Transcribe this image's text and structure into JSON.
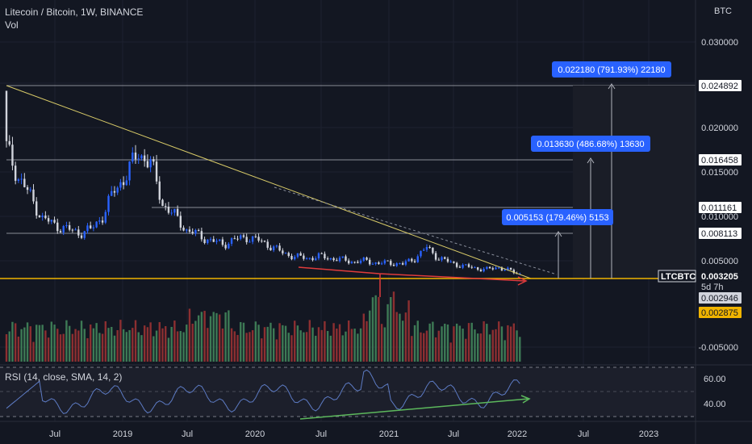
{
  "header": {
    "title": "Litecoin / Bitcoin, 1W, BINANCE",
    "volume_label": "Vol",
    "currency": "BTC"
  },
  "price_axis": {
    "ticks": [
      "0.030000",
      "0.020000",
      "0.015000",
      "0.010000",
      "0.005000",
      "-0.005000"
    ],
    "tags": [
      {
        "label": "0.024892",
        "style": "white"
      },
      {
        "label": "0.016458",
        "style": "white"
      },
      {
        "label": "0.011161",
        "style": "white"
      },
      {
        "label": "0.008113",
        "style": "white"
      },
      {
        "label": "0.003205",
        "style": "dark"
      },
      {
        "label": "5d 7h",
        "style": "dark-sub"
      },
      {
        "label": "0.002946",
        "style": "gray"
      },
      {
        "label": "0.002875",
        "style": "yellow"
      }
    ],
    "symbol_tag": "LTCBTC"
  },
  "time_axis": [
    "Jul",
    "2019",
    "Jul",
    "2020",
    "Jul",
    "2021",
    "Jul",
    "2022",
    "Jul",
    "2023"
  ],
  "rsi": {
    "label": "RSI (14, close, SMA, 14, 2)",
    "ticks": [
      "60.00",
      "40.00"
    ]
  },
  "annotations": [
    "0.022180 (791.93%) 22180",
    "0.013630 (486.68%) 13630",
    "0.005153 (179.46%) 5153"
  ],
  "colors": {
    "background": "#131722",
    "candle_up": "#2962ff",
    "candle_down": "#d1d4dc",
    "vol_up": "#3d7a55",
    "vol_down": "#8c2f31",
    "trendline": "#d9cb68",
    "support": "#f0b400",
    "rsi_line": "#5d7bc4",
    "red_arrow": "#e03c3c",
    "green_arrow": "#5cb85c",
    "label_bg": "#2962ff"
  },
  "chart_data": {
    "type": "candlestick",
    "title": "Litecoin / Bitcoin, 1W, BINANCE",
    "ylabel": "BTC",
    "ylim": [
      -0.0071,
      0.0343
    ],
    "x": [
      "2018-06",
      "2018-07",
      "2018-08",
      "2018-09",
      "2018-10",
      "2018-11",
      "2018-12",
      "2019-01",
      "2019-02",
      "2019-03",
      "2019-04",
      "2019-05",
      "2019-06",
      "2019-07",
      "2019-08",
      "2019-09",
      "2019-10",
      "2019-11",
      "2019-12",
      "2020-01",
      "2020-02",
      "2020-03",
      "2020-04",
      "2020-05",
      "2020-06",
      "2020-07",
      "2020-08",
      "2020-09",
      "2020-10",
      "2020-11",
      "2020-12",
      "2021-01",
      "2021-02",
      "2021-03",
      "2021-04",
      "2021-05",
      "2021-06",
      "2021-07",
      "2021-08",
      "2021-09",
      "2021-10",
      "2021-11",
      "2021-12",
      "2022-01"
    ],
    "close": [
      0.0175,
      0.0142,
      0.012,
      0.0095,
      0.0088,
      0.0083,
      0.0079,
      0.0082,
      0.0098,
      0.0127,
      0.0145,
      0.017,
      0.0158,
      0.0112,
      0.0098,
      0.0082,
      0.0076,
      0.007,
      0.0066,
      0.0071,
      0.0074,
      0.007,
      0.0064,
      0.0056,
      0.0052,
      0.005,
      0.0052,
      0.005,
      0.0048,
      0.0046,
      0.0047,
      0.0044,
      0.0045,
      0.0043,
      0.005,
      0.0062,
      0.005,
      0.0045,
      0.0041,
      0.0039,
      0.0037,
      0.004,
      0.0035,
      0.0032
    ],
    "series": [
      {
        "name": "LTCBTC",
        "last": 0.003205
      }
    ],
    "levels": [
      0.024892,
      0.016458,
      0.011161,
      0.008113,
      0.003205,
      0.002946,
      0.002875
    ],
    "rsi_ylim": [
      20,
      80
    ]
  }
}
